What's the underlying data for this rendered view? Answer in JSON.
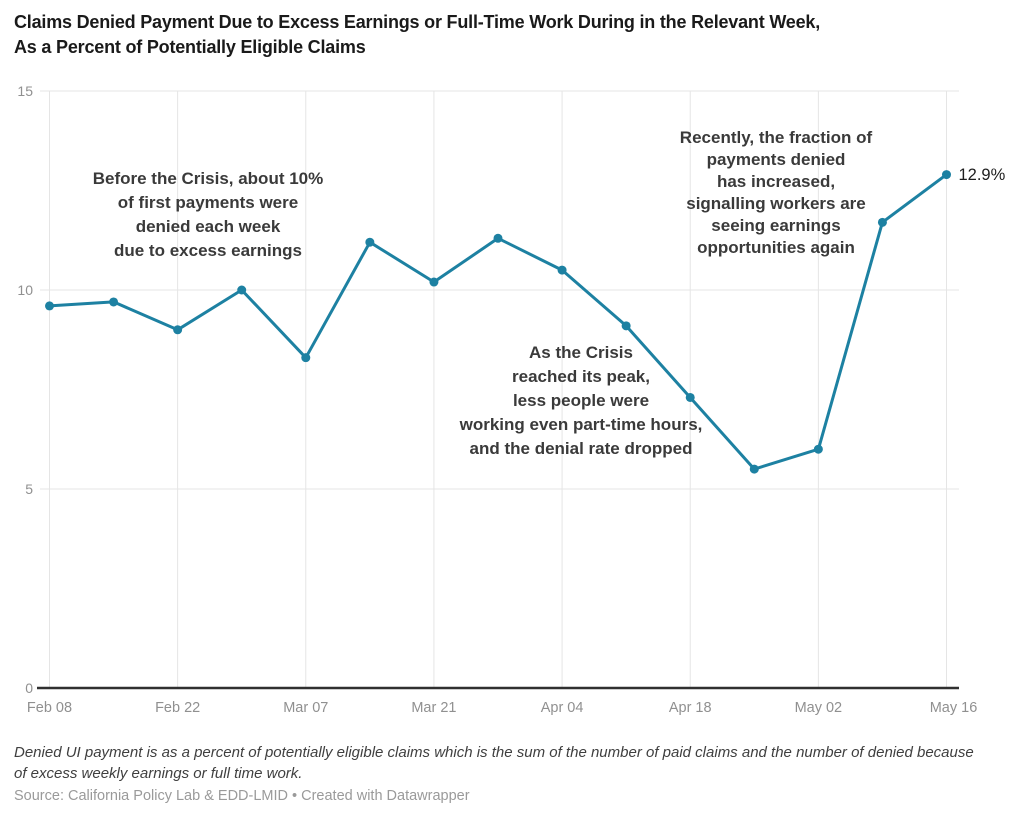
{
  "header": {
    "title": "Claims Denied Payment Due to Excess Earnings or Full-Time Work During in the Relevant Week,\nAs a Percent of Potentially Eligible Claims"
  },
  "chart_data": {
    "type": "line",
    "title": "Claims Denied Payment Due to Excess Earnings or Full-Time Work During in the Relevant Week, As a Percent of Potentially Eligible Claims",
    "x": [
      "Feb 08",
      "Feb 15",
      "Feb 22",
      "Feb 29",
      "Mar 07",
      "Mar 14",
      "Mar 21",
      "Mar 28",
      "Apr 04",
      "Apr 11",
      "Apr 18",
      "Apr 25",
      "May 02",
      "May 09",
      "May 16"
    ],
    "values": [
      9.6,
      9.7,
      9.0,
      10.0,
      8.3,
      11.2,
      10.2,
      11.3,
      10.5,
      9.1,
      7.3,
      5.5,
      6.0,
      11.7,
      12.9
    ],
    "x_tick_labels": [
      "Feb 08",
      "Feb 22",
      "Mar 07",
      "Mar 21",
      "Apr 04",
      "Apr 18",
      "May 02",
      "May 16"
    ],
    "x_tick_indices": [
      0,
      2,
      4,
      6,
      8,
      10,
      12,
      14
    ],
    "y_tick_labels": [
      "0",
      "5",
      "10",
      "15"
    ],
    "y_ticks": [
      0,
      5,
      10,
      15
    ],
    "ylim": [
      0,
      15
    ],
    "grid": "horizontal-and-vertical",
    "legend": "none",
    "end_value_label": "12.9%",
    "colors": {
      "line": "#1d81a2",
      "grid": "#e5e5e5",
      "axis": "#303030",
      "tick_label": "#909090",
      "end_label": "#1d1d1d",
      "annotation": "#3a3a3a"
    },
    "annotations": [
      {
        "id": "annotation-before-crisis",
        "text": "Before the Crisis, about 10%\nof first payments were\ndenied each week\ndue to excess earnings",
        "cx": 208,
        "top": 167,
        "line_height": 24,
        "font_size": 17
      },
      {
        "id": "annotation-crisis-peak",
        "text": "As the Crisis\nreached its peak,\nless people were\nworking even part-time hours,\nand the denial rate dropped",
        "cx": 581,
        "top": 341,
        "line_height": 24,
        "font_size": 17
      },
      {
        "id": "annotation-recently-increased",
        "text": "Recently, the fraction of\npayments denied\nhas increased,\nsignalling workers are\nseeing earnings\nopportunities again",
        "cx": 776,
        "top": 127,
        "line_height": 22,
        "font_size": 17
      }
    ]
  },
  "footer": {
    "note": "Denied UI payment is as a percent of potentially eligible claims which is the sum of the number of paid claims and the number of denied because\nof excess weekly earnings or full time work.",
    "source": "Source: California Policy Lab & EDD-LMID • Created with Datawrapper"
  }
}
